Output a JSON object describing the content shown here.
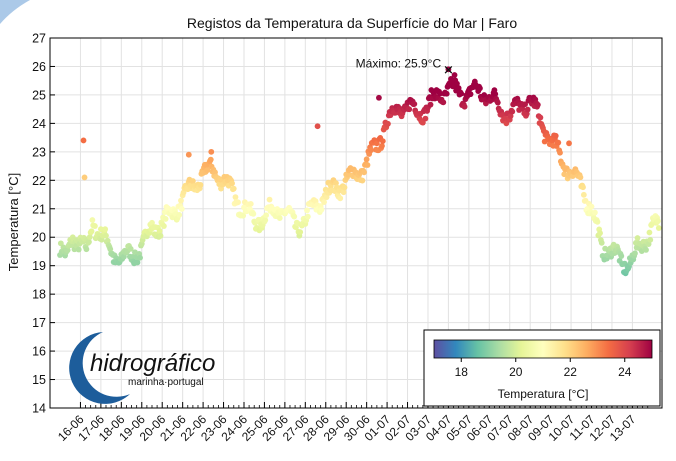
{
  "chart_data": {
    "type": "scatter",
    "title": "Registos da Temperatura da Superfície do Mar | Faro",
    "xlabel": "",
    "ylabel": "Temperatura [°C]",
    "ylim": [
      14,
      27
    ],
    "yticks": [
      14,
      15,
      16,
      17,
      18,
      19,
      20,
      21,
      22,
      23,
      24,
      25,
      26,
      27
    ],
    "xlim": [
      "2023-06-15",
      "2023-07-14"
    ],
    "xtick_labels": [
      "16-06",
      "17-06",
      "18-06",
      "19-06",
      "20-06",
      "21-06",
      "22-06",
      "23-06",
      "24-06",
      "25-06",
      "26-06",
      "27-06",
      "28-06",
      "29-06",
      "30-06",
      "01-07",
      "02-07",
      "03-07",
      "04-07",
      "05-07",
      "06-07",
      "07-07",
      "08-07",
      "09-07",
      "10-07",
      "11-07",
      "12-07",
      "13-07"
    ],
    "grid": true,
    "annotation": {
      "text": "Máximo: 25.9°C",
      "x": "2023-07-04",
      "y": 25.9
    },
    "colorbar": {
      "label": "Temperatura [°C]",
      "range": [
        17,
        25
      ],
      "ticks": [
        18,
        20,
        22,
        24
      ],
      "colormap": "Spectral_r",
      "placement": "lower-right"
    },
    "trend": [
      {
        "day": 0.0,
        "value": 19.6
      },
      {
        "day": 0.3,
        "value": 19.1
      },
      {
        "day": 0.6,
        "value": 20.1
      },
      {
        "day": 1.0,
        "value": 19.8
      },
      {
        "day": 1.3,
        "value": 19.4
      },
      {
        "day": 1.6,
        "value": 20.6
      },
      {
        "day": 2.0,
        "value": 20.1
      },
      {
        "day": 2.5,
        "value": 19.5
      },
      {
        "day": 3.0,
        "value": 19.2
      },
      {
        "day": 3.5,
        "value": 19.4
      },
      {
        "day": 4.0,
        "value": 19.6
      },
      {
        "day": 4.5,
        "value": 20.4
      },
      {
        "day": 5.0,
        "value": 20.4
      },
      {
        "day": 5.5,
        "value": 20.9
      },
      {
        "day": 6.0,
        "value": 21.3
      },
      {
        "day": 6.5,
        "value": 21.8
      },
      {
        "day": 7.0,
        "value": 22.2
      },
      {
        "day": 7.5,
        "value": 22.4
      },
      {
        "day": 8.0,
        "value": 22.0
      },
      {
        "day": 8.5,
        "value": 21.5
      },
      {
        "day": 9.0,
        "value": 21.0
      },
      {
        "day": 9.5,
        "value": 20.6
      },
      {
        "day": 10.0,
        "value": 20.7
      },
      {
        "day": 10.5,
        "value": 21.0
      },
      {
        "day": 11.0,
        "value": 20.9
      },
      {
        "day": 11.5,
        "value": 20.4
      },
      {
        "day": 12.0,
        "value": 20.6
      },
      {
        "day": 12.5,
        "value": 21.1
      },
      {
        "day": 13.0,
        "value": 21.5
      },
      {
        "day": 13.5,
        "value": 21.7
      },
      {
        "day": 14.0,
        "value": 22.0
      },
      {
        "day": 14.5,
        "value": 22.2
      },
      {
        "day": 15.0,
        "value": 22.6
      },
      {
        "day": 15.5,
        "value": 23.2
      },
      {
        "day": 16.0,
        "value": 24.1
      },
      {
        "day": 16.5,
        "value": 24.5
      },
      {
        "day": 17.0,
        "value": 24.6
      },
      {
        "day": 17.5,
        "value": 24.4
      },
      {
        "day": 18.0,
        "value": 24.6
      },
      {
        "day": 18.5,
        "value": 25.0
      },
      {
        "day": 19.0,
        "value": 25.2
      },
      {
        "day": 19.5,
        "value": 25.1
      },
      {
        "day": 20.0,
        "value": 25.0
      },
      {
        "day": 20.5,
        "value": 25.2
      },
      {
        "day": 21.0,
        "value": 24.9
      },
      {
        "day": 21.5,
        "value": 24.6
      },
      {
        "day": 22.0,
        "value": 24.3
      },
      {
        "day": 22.5,
        "value": 24.6
      },
      {
        "day": 23.0,
        "value": 24.8
      },
      {
        "day": 23.5,
        "value": 24.1
      },
      {
        "day": 24.0,
        "value": 23.4
      },
      {
        "day": 24.5,
        "value": 22.8
      },
      {
        "day": 25.0,
        "value": 22.3
      },
      {
        "day": 25.5,
        "value": 21.8
      },
      {
        "day": 26.0,
        "value": 21.0
      },
      {
        "day": 26.5,
        "value": 19.6
      },
      {
        "day": 27.0,
        "value": 19.6
      },
      {
        "day": 27.5,
        "value": 19.0
      },
      {
        "day": 28.0,
        "value": 19.3
      },
      {
        "day": 28.5,
        "value": 19.7
      },
      {
        "day": 29.0,
        "value": 20.5
      },
      {
        "day": 29.3,
        "value": 20.3
      }
    ],
    "outliers": [
      {
        "day": 1.15,
        "value": 23.4
      },
      {
        "day": 1.2,
        "value": 22.1
      },
      {
        "day": 6.3,
        "value": 22.9
      },
      {
        "day": 7.4,
        "value": 23.0
      },
      {
        "day": 12.6,
        "value": 23.9
      },
      {
        "day": 15.6,
        "value": 24.9
      },
      {
        "day": 19.3,
        "value": 25.7
      },
      {
        "day": 19.0,
        "value": 25.9
      },
      {
        "day": 24.9,
        "value": 23.3
      }
    ]
  },
  "logo": {
    "name": "hidrográfico",
    "subtitle": "marinha·portugal",
    "primary_color": "#1d5d9b"
  },
  "colors": {
    "background": "#ffffff",
    "grid": "#e2e2e2",
    "axis": "#000000",
    "swoosh": "#9cc0e4"
  }
}
